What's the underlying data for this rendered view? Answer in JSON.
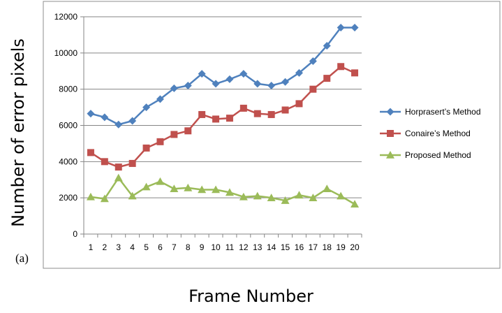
{
  "chart_data": {
    "type": "line",
    "title": "",
    "xlabel": "Frame Number",
    "ylabel": "Number of error pixels",
    "panel_label": "(a)",
    "categories": [
      "1",
      "2",
      "3",
      "4",
      "5",
      "6",
      "7",
      "8",
      "9",
      "10",
      "11",
      "12",
      "13",
      "14",
      "15",
      "16",
      "17",
      "18",
      "19",
      "20"
    ],
    "ylim": [
      0,
      12000
    ],
    "yticks": [
      "0",
      "2000",
      "4000",
      "6000",
      "8000",
      "10000",
      "12000"
    ],
    "grid": true,
    "legend_position": "right",
    "series": [
      {
        "name": "Horprasert’s Method",
        "color": "#4f81bd",
        "marker": "diamond",
        "values": [
          6650,
          6450,
          6050,
          6250,
          7000,
          7450,
          8050,
          8200,
          8850,
          8300,
          8550,
          8850,
          8300,
          8200,
          8400,
          8900,
          9550,
          10400,
          11400,
          11400
        ]
      },
      {
        "name": "Conaire’s Method",
        "color": "#c0504d",
        "marker": "square",
        "values": [
          4500,
          4000,
          3700,
          3900,
          4750,
          5100,
          5500,
          5700,
          6600,
          6350,
          6400,
          6950,
          6650,
          6600,
          6850,
          7200,
          8000,
          8600,
          9250,
          8900
        ]
      },
      {
        "name": "Proposed Method",
        "color": "#9bbb59",
        "marker": "triangle",
        "values": [
          2050,
          1950,
          3100,
          2100,
          2600,
          2900,
          2500,
          2550,
          2450,
          2450,
          2300,
          2050,
          2100,
          2000,
          1850,
          2150,
          2000,
          2500,
          2100,
          1650
        ]
      }
    ]
  }
}
